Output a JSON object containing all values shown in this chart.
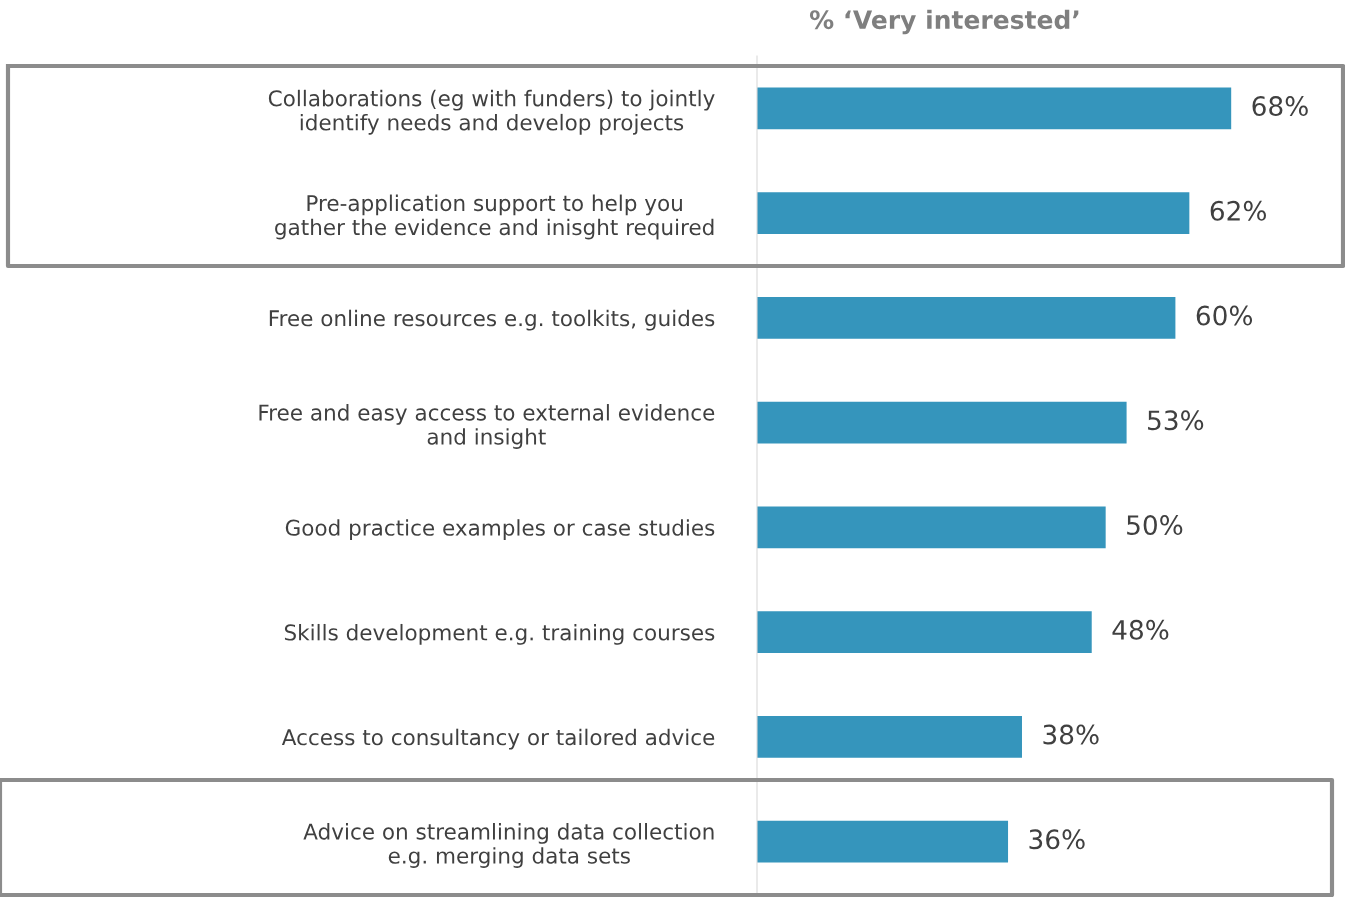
{
  "chart_data": {
    "type": "bar",
    "orientation": "horizontal",
    "title": "% ‘Very interested’",
    "categories": [
      "Collaborations (eg with funders) to jointly\nidentify needs and develop projects",
      "Pre-application support to help you\ngather the evidence and inisght required",
      "Free online resources e.g. toolkits, guides",
      "Free and easy access to external evidence\nand insight",
      "Good practice examples or case studies",
      "Skills development e.g. training courses",
      "Access to consultancy or tailored advice",
      "Advice on streamlining data collection\ne.g. merging data sets"
    ],
    "values": [
      68,
      62,
      60,
      53,
      50,
      48,
      38,
      36
    ],
    "value_labels": [
      "68%",
      "62%",
      "60%",
      "53%",
      "50%",
      "48%",
      "38%",
      "36%"
    ],
    "color": "#3595bc",
    "tick_labels": "y",
    "grid": false
  }
}
